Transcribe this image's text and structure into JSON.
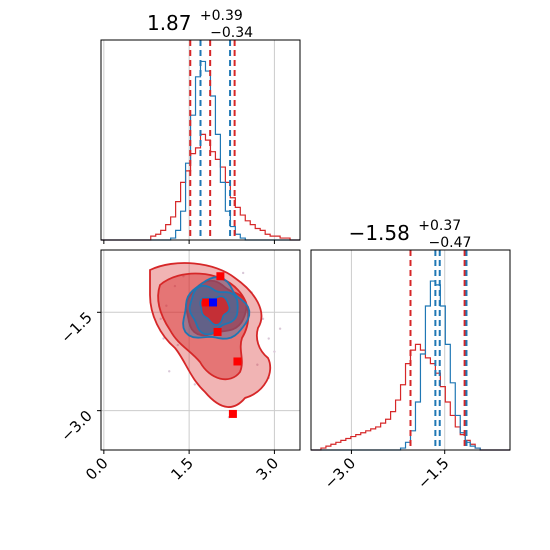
{
  "chart_data": {
    "type": "corner",
    "params": [
      {
        "median": 1.87,
        "plus": "+0.39",
        "minus": "−0.34",
        "title_main": "1.87",
        "xlim": [
          -0.05,
          3.45
        ],
        "ticks": [
          0.0,
          1.5,
          3.0
        ],
        "tick_labels": [
          "0.0",
          "1.5",
          "3.0"
        ]
      },
      {
        "median": -1.58,
        "plus": "+0.37",
        "minus": "−0.47",
        "title_main": "−1.58",
        "xlim": [
          -3.65,
          -0.45
        ],
        "ticks": [
          -3.0,
          -1.5
        ],
        "tick_labels": [
          "−3.0",
          "−1.5"
        ]
      }
    ],
    "colors": {
      "red": "#d62728",
      "blue": "#1f77b4",
      "grid": "#cccccc"
    },
    "quantiles_red": {
      "p0": [
        1.52,
        2.3
      ],
      "p1": [
        -2.05,
        -1.18
      ]
    },
    "quantiles_blue": {
      "p0": [
        1.7,
        2.22
      ],
      "p1": [
        -1.65,
        -1.15
      ]
    },
    "hist_bins": 40,
    "hist_red_p0": [
      0,
      0,
      0,
      0,
      0,
      0,
      0,
      0,
      0,
      0,
      0.02,
      0.03,
      0.05,
      0.08,
      0.12,
      0.2,
      0.3,
      0.36,
      0.45,
      0.48,
      0.55,
      0.52,
      0.46,
      0.42,
      0.38,
      0.3,
      0.22,
      0.17,
      0.13,
      0.1,
      0.08,
      0.06,
      0.05,
      0.03,
      0.02,
      0.02,
      0.01,
      0.01,
      0,
      0
    ],
    "hist_blue_p0": [
      0,
      0,
      0,
      0,
      0,
      0,
      0,
      0,
      0,
      0,
      0,
      0,
      0,
      0,
      0.01,
      0.05,
      0.15,
      0.4,
      0.65,
      0.85,
      0.93,
      0.88,
      0.75,
      0.55,
      0.3,
      0.15,
      0.07,
      0.03,
      0.01,
      0,
      0,
      0,
      0,
      0,
      0,
      0,
      0,
      0,
      0,
      0
    ],
    "hist_red_p1": [
      0,
      0,
      0.01,
      0.02,
      0.03,
      0.04,
      0.05,
      0.06,
      0.07,
      0.08,
      0.09,
      0.1,
      0.11,
      0.12,
      0.14,
      0.16,
      0.2,
      0.26,
      0.34,
      0.45,
      0.52,
      0.55,
      0.52,
      0.48,
      0.45,
      0.4,
      0.33,
      0.25,
      0.18,
      0.12,
      0.08,
      0.05,
      0.03,
      0.01,
      0,
      0,
      0,
      0,
      0,
      0
    ],
    "hist_blue_p1": [
      0,
      0,
      0,
      0,
      0,
      0,
      0,
      0,
      0,
      0,
      0,
      0,
      0,
      0,
      0,
      0,
      0,
      0,
      0.01,
      0.04,
      0.1,
      0.25,
      0.5,
      0.75,
      0.88,
      0.86,
      0.75,
      0.55,
      0.35,
      0.18,
      0.09,
      0.04,
      0.02,
      0.01,
      0,
      0,
      0,
      0,
      0,
      0
    ],
    "red_markers": [
      {
        "x": 2.05,
        "y": -0.95
      },
      {
        "x": 1.8,
        "y": -1.35
      },
      {
        "x": 2.0,
        "y": -1.8
      },
      {
        "x": 2.35,
        "y": -2.25
      },
      {
        "x": 2.27,
        "y": -3.05
      }
    ],
    "blue_marker": {
      "x": 1.92,
      "y": -1.35
    }
  }
}
